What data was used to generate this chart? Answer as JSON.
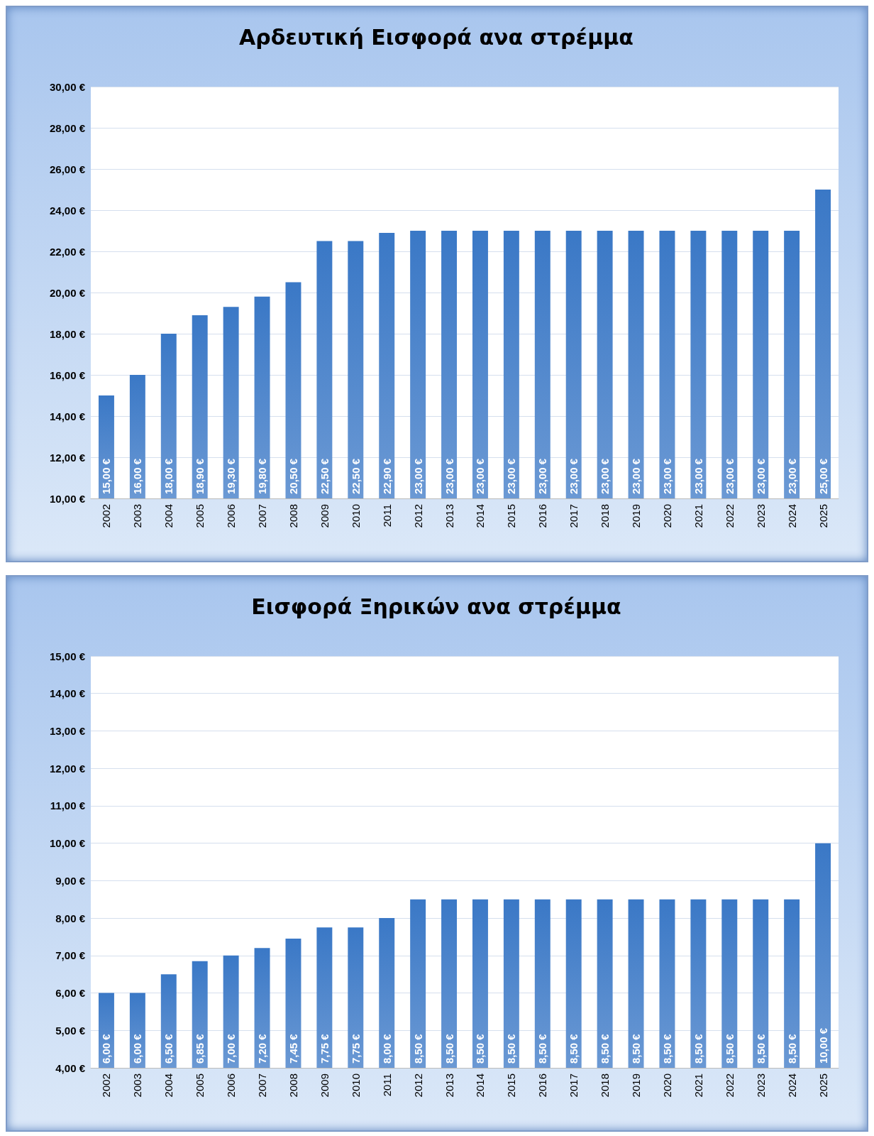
{
  "chart_data": [
    {
      "type": "bar",
      "title": "Αρδευτική Εισφορά ανα στρέμμα",
      "categories": [
        "2002",
        "2003",
        "2004",
        "2005",
        "2006",
        "2007",
        "2008",
        "2009",
        "2010",
        "2011",
        "2012",
        "2013",
        "2014",
        "2015",
        "2016",
        "2017",
        "2018",
        "2019",
        "2020",
        "2021",
        "2022",
        "2023",
        "2024",
        "2025"
      ],
      "values": [
        15,
        16,
        18,
        18.9,
        19.3,
        19.8,
        20.5,
        22.5,
        22.5,
        22.9,
        23,
        23,
        23,
        23,
        23,
        23,
        23,
        23,
        23,
        23,
        23,
        23,
        23,
        25
      ],
      "value_labels": [
        "15,00 €",
        "16,00 €",
        "18,00 €",
        "18,90 €",
        "19,30 €",
        "19,80 €",
        "20,50 €",
        "22,50 €",
        "22,50 €",
        "22,90 €",
        "23,00 €",
        "23,00 €",
        "23,00 €",
        "23,00 €",
        "23,00 €",
        "23,00 €",
        "23,00 €",
        "23,00 €",
        "23,00 €",
        "23,00 €",
        "23,00 €",
        "23,00 €",
        "23,00 €",
        "25,00 €"
      ],
      "color": "#3a78c6",
      "ylim": [
        10,
        30
      ],
      "yticks": [
        {
          "value": 10,
          "label": "10,00 €"
        },
        {
          "value": 12,
          "label": "12,00 €"
        },
        {
          "value": 14,
          "label": "14,00 €"
        },
        {
          "value": 16,
          "label": "16,00 €"
        },
        {
          "value": 18,
          "label": "18,00 €"
        },
        {
          "value": 20,
          "label": "20,00 €"
        },
        {
          "value": 22,
          "label": "22,00 €"
        },
        {
          "value": 24,
          "label": "24,00 €"
        },
        {
          "value": 26,
          "label": "26,00 €"
        },
        {
          "value": 28,
          "label": "28,00 €"
        },
        {
          "value": 30,
          "label": "30,00 €"
        }
      ],
      "grid": "y"
    },
    {
      "type": "bar",
      "title": "Εισφορά Ξηρικών ανα στρέμμα",
      "categories": [
        "2002",
        "2003",
        "2004",
        "2005",
        "2006",
        "2007",
        "2008",
        "2009",
        "2010",
        "2011",
        "2012",
        "2013",
        "2014",
        "2015",
        "2016",
        "2017",
        "2018",
        "2019",
        "2020",
        "2021",
        "2022",
        "2023",
        "2024",
        "2025"
      ],
      "values": [
        6,
        6,
        6.5,
        6.85,
        7,
        7.2,
        7.45,
        7.75,
        7.75,
        8,
        8.5,
        8.5,
        8.5,
        8.5,
        8.5,
        8.5,
        8.5,
        8.5,
        8.5,
        8.5,
        8.5,
        8.5,
        8.5,
        10
      ],
      "value_labels": [
        "6,00 €",
        "6,00 €",
        "6,50 €",
        "6,85 €",
        "7,00 €",
        "7,20 €",
        "7,45 €",
        "7,75 €",
        "7,75 €",
        "8,00 €",
        "8,50 €",
        "8,50 €",
        "8,50 €",
        "8,50 €",
        "8,50 €",
        "8,50 €",
        "8,50 €",
        "8,50 €",
        "8,50 €",
        "8,50 €",
        "8,50 €",
        "8,50 €",
        "8,50 €",
        "10,00 €"
      ],
      "color": "#3a78c6",
      "ylim": [
        4,
        15
      ],
      "yticks": [
        {
          "value": 4,
          "label": "4,00 €"
        },
        {
          "value": 5,
          "label": "5,00 €"
        },
        {
          "value": 6,
          "label": "6,00 €"
        },
        {
          "value": 7,
          "label": "7,00 €"
        },
        {
          "value": 8,
          "label": "8,00 €"
        },
        {
          "value": 9,
          "label": "9,00 €"
        },
        {
          "value": 10,
          "label": "10,00 €"
        },
        {
          "value": 11,
          "label": "11,00 €"
        },
        {
          "value": 12,
          "label": "12,00 €"
        },
        {
          "value": 13,
          "label": "13,00 €"
        },
        {
          "value": 14,
          "label": "14,00 €"
        },
        {
          "value": 15,
          "label": "15,00 €"
        }
      ],
      "grid": "y"
    }
  ]
}
